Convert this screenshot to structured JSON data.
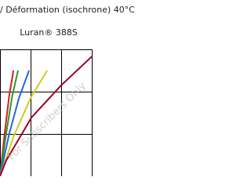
{
  "chart_data": {
    "type": "line",
    "title": "/ Déformation (isochrone) 40°C",
    "subtitle": "Luran® 388S",
    "watermark": "For Subscribers Only",
    "xlim": [
      0,
      3
    ],
    "ylim": [
      0,
      3
    ],
    "xticks": [
      0,
      1,
      2,
      3
    ],
    "yticks": [
      0,
      1,
      2,
      3
    ],
    "grid": true,
    "series": [
      {
        "color": "#cc2222",
        "x": [
          0,
          0.15,
          0.3,
          0.44
        ],
        "values": [
          0,
          1,
          1.9,
          2.5
        ]
      },
      {
        "color": "#2a9a2a",
        "x": [
          0,
          0.2,
          0.4,
          0.59
        ],
        "values": [
          0,
          1,
          1.9,
          2.5
        ]
      },
      {
        "color": "#2266dd",
        "x": [
          0,
          0.3,
          0.62,
          0.95
        ],
        "values": [
          0,
          1,
          1.85,
          2.5
        ]
      },
      {
        "color": "#cccc22",
        "x": [
          0,
          0.45,
          1.0,
          1.54
        ],
        "values": [
          0,
          0.95,
          1.85,
          2.5
        ]
      },
      {
        "color": "#990022",
        "x": [
          0,
          0.2,
          1.03,
          2.0,
          3.0
        ],
        "values": [
          0,
          0.37,
          1.39,
          2.15,
          2.83
        ]
      }
    ]
  }
}
